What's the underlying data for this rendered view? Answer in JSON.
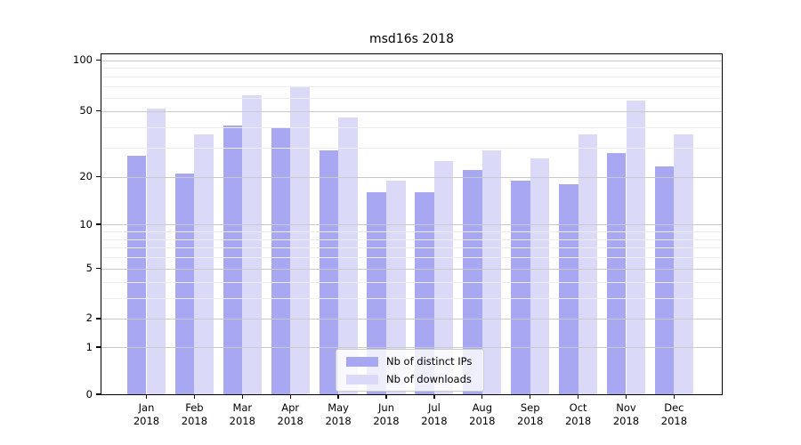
{
  "title": "msd16s 2018",
  "chart_data": {
    "type": "bar",
    "title": "msd16s 2018",
    "categories": [
      "Jan 2018",
      "Feb 2018",
      "Mar 2018",
      "Apr 2018",
      "May 2018",
      "Jun 2018",
      "Jul 2018",
      "Aug 2018",
      "Sep 2018",
      "Oct 2018",
      "Nov 2018",
      "Dec 2018"
    ],
    "series": [
      {
        "name": "Nb of distinct IPs",
        "color": "#a8a8f2",
        "values": [
          27,
          21,
          41,
          40,
          29,
          16,
          16,
          22,
          19,
          18,
          28,
          23
        ]
      },
      {
        "name": "Nb of downloads",
        "color": "#dadaf8",
        "values": [
          52,
          36,
          62,
          70,
          46,
          19,
          25,
          29,
          26,
          36,
          58,
          36
        ]
      }
    ],
    "xlabel": "",
    "ylabel": "",
    "yscale": "symlog-like (position proportional to ln(1 + value/1.13))",
    "ylim": [
      0,
      108.5
    ],
    "y_major_ticks": [
      0,
      1,
      2,
      5,
      10,
      20,
      50,
      100
    ],
    "y_minor_gridlines": [
      3,
      4,
      6,
      7,
      8,
      9,
      30,
      40,
      60,
      70,
      80,
      90
    ],
    "grid": "major and minor horizontal gridlines drawn above bars",
    "legend_position": "lower center, framed, translucent white background"
  },
  "legend": {
    "items": [
      {
        "label": "Nb of distinct IPs",
        "color": "#a8a8f2"
      },
      {
        "label": "Nb of downloads",
        "color": "#dadaf8"
      }
    ]
  },
  "colors": {
    "background": "#ffffff",
    "frame": "#000000",
    "grid_major": "#c9c9c9",
    "grid_minor": "#ededed",
    "legend_border": "#cccccc",
    "legend_background": "rgba(255,255,255,0.8)",
    "text": "#000000"
  }
}
